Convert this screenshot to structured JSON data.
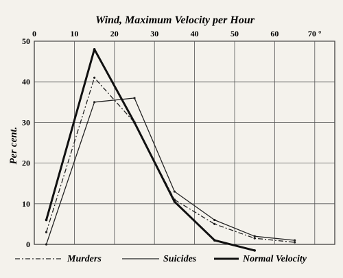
{
  "chart_data": {
    "type": "line",
    "title": "Wind, Maximum Velocity per Hour",
    "xlabel": "",
    "ylabel": "Per cent.",
    "xlim": [
      0,
      75
    ],
    "ylim": [
      0,
      50
    ],
    "x_ticks": [
      0,
      10,
      20,
      30,
      40,
      50,
      60,
      70
    ],
    "x_tick_labels": [
      "0",
      "10",
      "20",
      "30",
      "40",
      "50",
      "60",
      "70 °"
    ],
    "y_ticks": [
      0,
      10,
      20,
      30,
      40,
      50
    ],
    "y_tick_labels": [
      "0",
      "10",
      "20",
      "30",
      "40",
      "50"
    ],
    "grid": true,
    "legend_position": "bottom",
    "series": [
      {
        "name": "Murders",
        "style": "dashdot",
        "color": "#222222",
        "points": [
          [
            3,
            3
          ],
          [
            15,
            41
          ],
          [
            25,
            30
          ],
          [
            35,
            11
          ],
          [
            45,
            5
          ],
          [
            55,
            1.5
          ],
          [
            65,
            0.5
          ]
        ]
      },
      {
        "name": "Suicides",
        "style": "thin",
        "color": "#222222",
        "points": [
          [
            3,
            0
          ],
          [
            15,
            35
          ],
          [
            25,
            36
          ],
          [
            35,
            13
          ],
          [
            45,
            6
          ],
          [
            55,
            2
          ],
          [
            65,
            1
          ]
        ]
      },
      {
        "name": "Normal Velocity",
        "style": "thick",
        "color": "#111111",
        "points": [
          [
            3,
            6
          ],
          [
            15,
            48
          ],
          [
            25,
            30
          ],
          [
            35,
            10.5
          ],
          [
            45,
            1
          ],
          [
            55,
            -1.5
          ]
        ]
      }
    ]
  }
}
